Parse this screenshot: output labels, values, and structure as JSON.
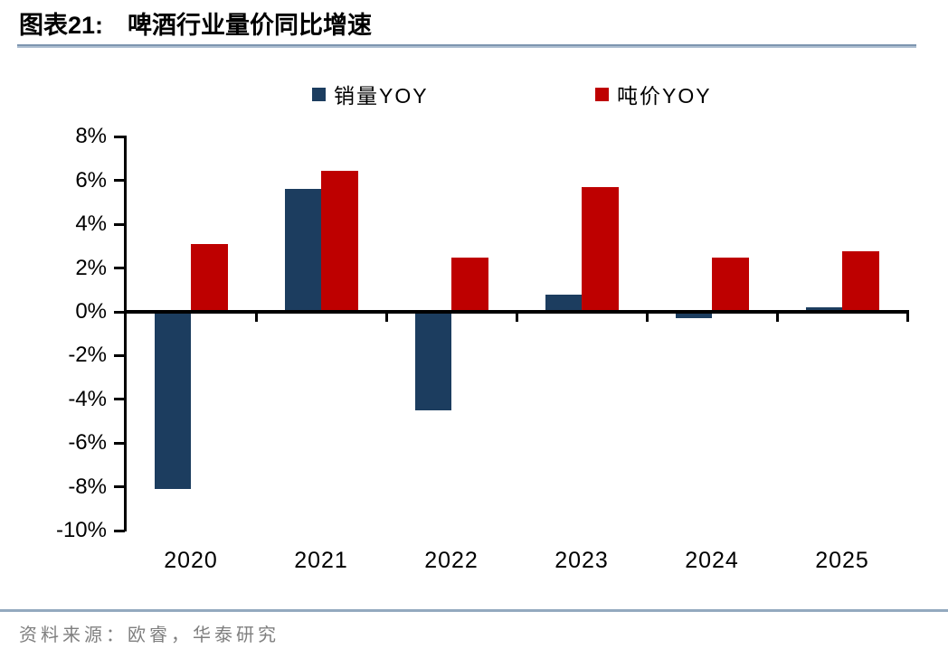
{
  "header": {
    "figure_label": "图表21:",
    "title": "啤酒行业量价同比增速"
  },
  "legend": [
    {
      "label": "销量YOY",
      "color": "#1C3D5F"
    },
    {
      "label": "吨价YOY",
      "color": "#BE0000"
    }
  ],
  "footer": {
    "source": "资料来源：欧睿，华泰研究"
  },
  "colors": {
    "volume_series": "#1C3D5F",
    "price_series": "#BE0000",
    "rule_line": "#93a9bf",
    "axis": "#000000",
    "source_text": "#7f7f7f"
  },
  "chart_data": {
    "type": "bar",
    "title": "啤酒行业量价同比增速",
    "categories": [
      "2020",
      "2021",
      "2022",
      "2023",
      "2024",
      "2025"
    ],
    "series": [
      {
        "name": "销量YOY",
        "color": "#1C3D5F",
        "values": [
          -8.1,
          5.6,
          -4.5,
          0.8,
          -0.3,
          0.2
        ]
      },
      {
        "name": "吨价YOY",
        "color": "#BE0000",
        "values": [
          3.1,
          6.45,
          2.5,
          5.7,
          2.5,
          2.75
        ]
      }
    ],
    "xlabel": "",
    "ylabel": "",
    "ylim": [
      -10,
      8
    ],
    "y_tick_labels": [
      "8%",
      "6%",
      "4%",
      "2%",
      "0%",
      "-2%",
      "-4%",
      "-6%",
      "-8%",
      "-10%"
    ],
    "grid": false,
    "legend_position": "top"
  }
}
